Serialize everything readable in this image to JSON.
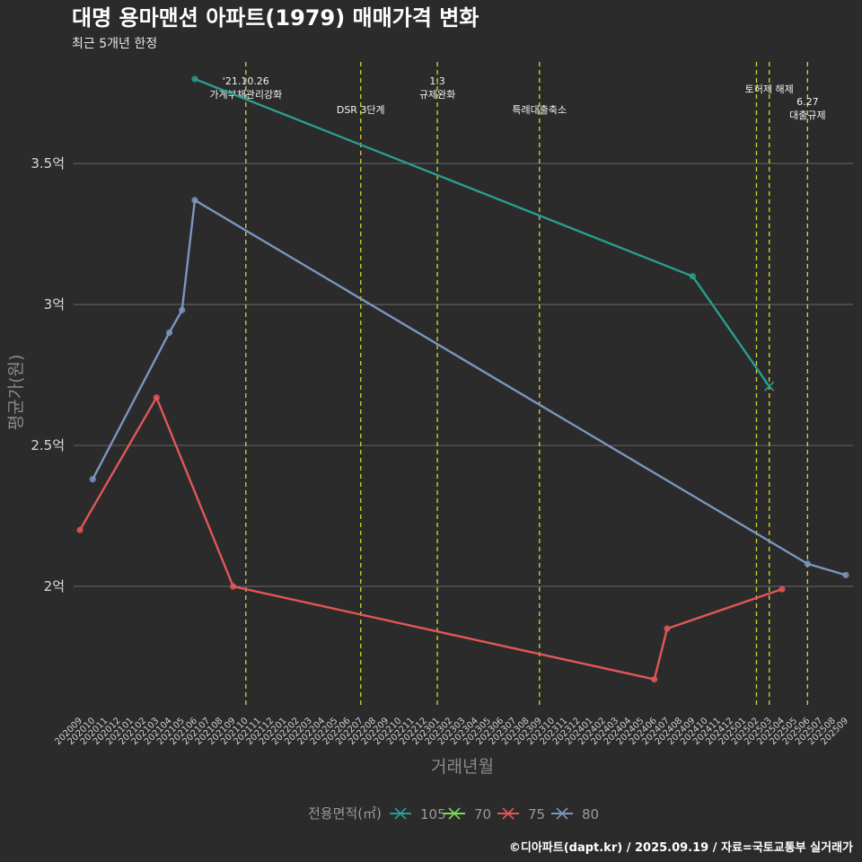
{
  "chart_data": {
    "type": "line",
    "title": "대명 용마맨션 아파트(1979) 매매가격 변화",
    "subtitle": "최근 5개년 한정",
    "xlabel": "거래년월",
    "ylabel": "평균가(원)",
    "caption": "©디아파트(dapt.kr) / 2025.09.19 / 자료=국토교통부 실거래가",
    "x_categories": [
      "202009",
      "202010",
      "202011",
      "202012",
      "202101",
      "202102",
      "202103",
      "202104",
      "202105",
      "202106",
      "202107",
      "202108",
      "202109",
      "202110",
      "202111",
      "202112",
      "202201",
      "202202",
      "202203",
      "202204",
      "202205",
      "202206",
      "202207",
      "202208",
      "202209",
      "202210",
      "202211",
      "202212",
      "202301",
      "202302",
      "202303",
      "202304",
      "202305",
      "202306",
      "202307",
      "202308",
      "202309",
      "202310",
      "202311",
      "202312",
      "202401",
      "202402",
      "202403",
      "202404",
      "202405",
      "202406",
      "202407",
      "202408",
      "202409",
      "202410",
      "202411",
      "202412",
      "202501",
      "202502",
      "202503",
      "202504",
      "202505",
      "202506",
      "202507",
      "202508",
      "202509"
    ],
    "y_ticks": [
      2.0,
      2.5,
      3.0,
      3.5
    ],
    "y_tick_labels": [
      "2억",
      "2.5억",
      "3억",
      "3.5억"
    ],
    "y_unit": "억원",
    "ylim": [
      1.57,
      3.87
    ],
    "grid": true,
    "legend": {
      "title": "전용면적(㎡)",
      "position": "bottom",
      "entries": [
        "105",
        "70",
        "75",
        "80"
      ]
    },
    "series": [
      {
        "name": "105",
        "color": "#2a9d8f",
        "points": [
          [
            "202106",
            3.8
          ],
          [
            "202409",
            3.1
          ],
          [
            "202503",
            2.71
          ]
        ]
      },
      {
        "name": "70",
        "color": "#7ed957",
        "points": []
      },
      {
        "name": "75",
        "color": "#e15759",
        "points": [
          [
            "202009",
            2.2
          ],
          [
            "202103",
            2.67
          ],
          [
            "202109",
            2.0
          ],
          [
            "202406",
            1.67
          ],
          [
            "202407",
            1.85
          ],
          [
            "202504",
            1.99
          ]
        ]
      },
      {
        "name": "80",
        "color": "#7b95c0",
        "points": [
          [
            "202010",
            2.38
          ],
          [
            "202104",
            2.9
          ],
          [
            "202105",
            2.98
          ],
          [
            "202106",
            3.37
          ],
          [
            "202506",
            2.08
          ],
          [
            "202509",
            2.04
          ]
        ]
      }
    ],
    "annotations": [
      {
        "x": "202110",
        "lines": [
          "'21.10.26",
          "가계부채관리강화"
        ],
        "row": "top"
      },
      {
        "x": "202207",
        "lines": [
          "DSR 3단계"
        ],
        "row": "low"
      },
      {
        "x": "202301",
        "lines": [
          "1.3",
          "규제완화"
        ],
        "row": "top"
      },
      {
        "x": "202309",
        "lines": [
          "특례대출축소"
        ],
        "row": "low"
      },
      {
        "x": "202502",
        "lines": [],
        "row": "top"
      },
      {
        "x": "202503",
        "lines": [
          "토허제 해제"
        ],
        "row": "mid"
      },
      {
        "x": "202506",
        "lines": [
          "6.27",
          "대출규제"
        ],
        "row": "low2"
      }
    ]
  }
}
